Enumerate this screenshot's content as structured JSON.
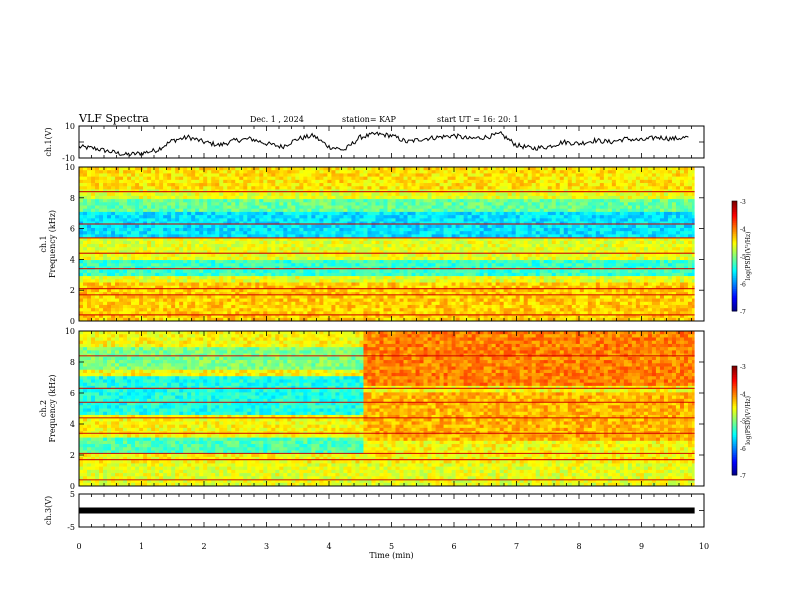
{
  "header": {
    "title": "VLF Spectra",
    "date": "Dec. 1 , 2024",
    "station": "station= KAP",
    "start_ut": "start  UT =  16: 20: 1"
  },
  "chart_data": [
    {
      "type": "line",
      "panel": "ch1-waveform",
      "ylabel": "ch.1(V)",
      "ylim": [
        -10,
        10
      ],
      "yticks": [
        "10",
        "-10"
      ],
      "xlim": [
        0,
        10
      ],
      "x": [
        0,
        0.25,
        0.5,
        0.75,
        1,
        1.25,
        1.5,
        1.75,
        2,
        2.25,
        2.5,
        2.75,
        3,
        3.25,
        3.5,
        3.75,
        4,
        4.25,
        4.5,
        4.75,
        5,
        5.25,
        5.5,
        5.75,
        6,
        6.25,
        6.5,
        6.75,
        7,
        7.25,
        7.5,
        7.75,
        8,
        8.25,
        8.5,
        8.75,
        9,
        9.25,
        9.5,
        9.75
      ],
      "values": [
        -3,
        -4,
        -6,
        -8,
        -7,
        -5,
        1,
        3,
        0,
        -2,
        1,
        2,
        -1,
        -3,
        2,
        4,
        -3,
        -5,
        3,
        5,
        4,
        0,
        2,
        3,
        4,
        2,
        3,
        5,
        -2,
        -4,
        -3,
        0,
        -1,
        1,
        0,
        2,
        1,
        3,
        2,
        3
      ]
    },
    {
      "type": "heatmap",
      "panel": "ch1-spectrogram",
      "ylabel": "ch.1\nFrequency (kHz)",
      "ylim": [
        0,
        10
      ],
      "yticks": [
        0,
        2,
        4,
        6,
        8,
        10
      ],
      "xlim": [
        0,
        10
      ],
      "color_range": [
        -7,
        -3
      ],
      "colorbar_label": "log(PSD)(V²/Hz)",
      "colorbar_ticks": [
        -3,
        -4,
        -5,
        -6,
        -7
      ]
    },
    {
      "type": "heatmap",
      "panel": "ch2-spectrogram",
      "ylabel": "ch.2\nFrequency (kHz)",
      "ylim": [
        0,
        10
      ],
      "yticks": [
        0,
        2,
        4,
        6,
        8,
        10
      ],
      "xlim": [
        0,
        10
      ],
      "color_range": [
        -7,
        -3
      ],
      "colorbar_label": "log(PSD)(V²/Hz)",
      "colorbar_ticks": [
        -3,
        -4,
        -5,
        -6,
        -7
      ]
    },
    {
      "type": "line",
      "panel": "ch3-waveform",
      "ylabel": "ch.3(V)",
      "ylim": [
        -5,
        5
      ],
      "yticks": [
        "5",
        "-5"
      ],
      "xlim": [
        0,
        10
      ],
      "x": [
        0,
        9.85
      ],
      "values": [
        0,
        0
      ]
    }
  ],
  "xaxis": {
    "label": "Time (min)",
    "ticks": [
      0,
      1,
      2,
      3,
      4,
      5,
      6,
      7,
      8,
      9,
      10
    ]
  }
}
